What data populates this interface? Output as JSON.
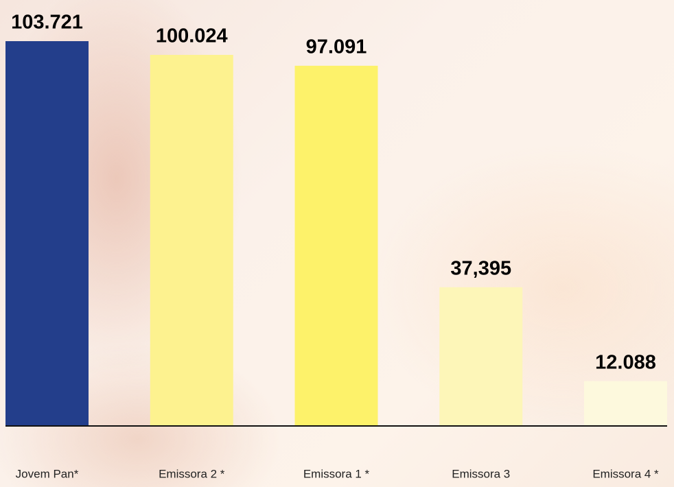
{
  "chart_data": {
    "type": "bar",
    "categories": [
      "Jovem Pan*",
      "Emissora 2 *",
      "Emissora 1 *",
      "Emissora 3",
      "Emissora 4 *"
    ],
    "values": [
      103721,
      100024,
      97091,
      37395,
      12088
    ],
    "value_labels": [
      "103.721",
      "100.024",
      "97.091",
      "37,395",
      "12.088"
    ],
    "colors": [
      "#233e8b",
      "#fdf28f",
      "#fdf26a",
      "#fdf6b8",
      "#fdf9dd"
    ]
  }
}
